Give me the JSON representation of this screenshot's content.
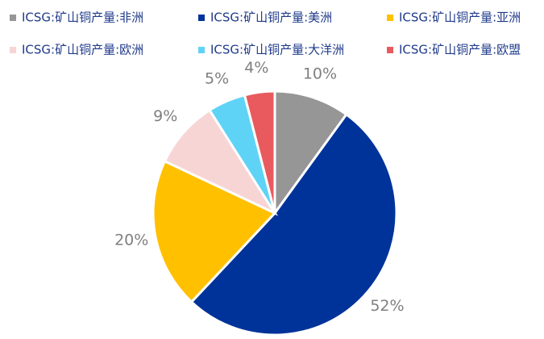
{
  "chart_data": {
    "type": "pie",
    "categories": [
      "ICSG:矿山铜产量:非洲",
      "ICSG:矿山铜产量:美洲",
      "ICSG:矿山铜产量:亚洲",
      "ICSG:矿山铜产量:欧洲",
      "ICSG:矿山铜产量:大洋洲",
      "ICSG:矿山铜产量:欧盟"
    ],
    "values": [
      10,
      52,
      20,
      9,
      5,
      4
    ],
    "value_labels": [
      "10%",
      "52%",
      "20%",
      "9%",
      "5%",
      "4%"
    ],
    "colors": [
      "#969696",
      "#003399",
      "#ffc000",
      "#f8d5d5",
      "#5fd3f6",
      "#e85a5e"
    ]
  }
}
